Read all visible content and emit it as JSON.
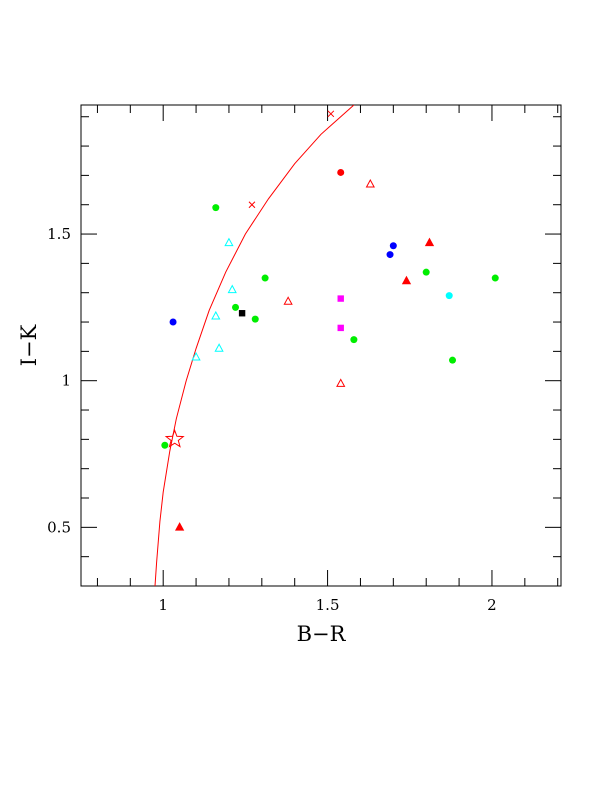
{
  "chart_data": {
    "type": "scatter",
    "xlabel": "B−R",
    "ylabel": "I−K",
    "xlim": [
      0.75,
      2.21
    ],
    "ylim": [
      0.3,
      1.94
    ],
    "x_ticks": [
      {
        "value": 1,
        "label": "1"
      },
      {
        "value": 1.5,
        "label": "1.5"
      },
      {
        "value": 2,
        "label": "2"
      }
    ],
    "y_ticks": [
      {
        "value": 0.5,
        "label": "0.5"
      },
      {
        "value": 1,
        "label": "1"
      },
      {
        "value": 1.5,
        "label": "1.5"
      }
    ],
    "x_minor_step": 0.1,
    "y_minor_step": 0.1,
    "grid": false,
    "colors": {
      "red": "#ff0000",
      "green": "#00ee00",
      "blue": "#0000ff",
      "cyan": "#00ffff",
      "magenta": "#ff00ff",
      "black": "#000000"
    },
    "curve": {
      "color": "#ff0000",
      "points": [
        [
          0.975,
          0.3
        ],
        [
          0.98,
          0.38
        ],
        [
          0.99,
          0.52
        ],
        [
          1.0,
          0.62
        ],
        [
          1.02,
          0.76
        ],
        [
          1.04,
          0.87
        ],
        [
          1.07,
          1.0
        ],
        [
          1.1,
          1.11
        ],
        [
          1.14,
          1.24
        ],
        [
          1.19,
          1.37
        ],
        [
          1.25,
          1.5
        ],
        [
          1.32,
          1.62
        ],
        [
          1.4,
          1.74
        ],
        [
          1.48,
          1.84
        ],
        [
          1.54,
          1.9
        ],
        [
          1.58,
          1.94
        ]
      ],
      "markers": [
        {
          "x": 1.035,
          "y": 0.8,
          "shape": "star"
        },
        {
          "x": 1.27,
          "y": 1.6,
          "shape": "cross"
        },
        {
          "x": 1.51,
          "y": 1.91,
          "shape": "cross"
        }
      ]
    },
    "points": [
      {
        "x": 1.16,
        "y": 1.59,
        "color": "green",
        "shape": "circle"
      },
      {
        "x": 1.31,
        "y": 1.35,
        "color": "green",
        "shape": "circle"
      },
      {
        "x": 1.22,
        "y": 1.25,
        "color": "green",
        "shape": "circle"
      },
      {
        "x": 1.28,
        "y": 1.21,
        "color": "green",
        "shape": "circle"
      },
      {
        "x": 1.58,
        "y": 1.14,
        "color": "green",
        "shape": "circle"
      },
      {
        "x": 1.8,
        "y": 1.37,
        "color": "green",
        "shape": "circle"
      },
      {
        "x": 2.01,
        "y": 1.35,
        "color": "green",
        "shape": "circle"
      },
      {
        "x": 1.88,
        "y": 1.07,
        "color": "green",
        "shape": "circle"
      },
      {
        "x": 1.005,
        "y": 0.78,
        "color": "green",
        "shape": "circle"
      },
      {
        "x": 1.03,
        "y": 1.2,
        "color": "blue",
        "shape": "circle"
      },
      {
        "x": 1.7,
        "y": 1.46,
        "color": "blue",
        "shape": "circle"
      },
      {
        "x": 1.69,
        "y": 1.43,
        "color": "blue",
        "shape": "circle"
      },
      {
        "x": 1.54,
        "y": 1.71,
        "color": "red",
        "shape": "circle"
      },
      {
        "x": 1.87,
        "y": 1.29,
        "color": "cyan",
        "shape": "circle"
      },
      {
        "x": 1.54,
        "y": 1.28,
        "color": "magenta",
        "shape": "square"
      },
      {
        "x": 1.54,
        "y": 1.18,
        "color": "magenta",
        "shape": "square"
      },
      {
        "x": 1.24,
        "y": 1.23,
        "color": "black",
        "shape": "square"
      },
      {
        "x": 1.2,
        "y": 1.47,
        "color": "cyan",
        "shape": "triangle-open"
      },
      {
        "x": 1.21,
        "y": 1.31,
        "color": "cyan",
        "shape": "triangle-open"
      },
      {
        "x": 1.16,
        "y": 1.22,
        "color": "cyan",
        "shape": "triangle-open"
      },
      {
        "x": 1.17,
        "y": 1.11,
        "color": "cyan",
        "shape": "triangle-open"
      },
      {
        "x": 1.1,
        "y": 1.08,
        "color": "cyan",
        "shape": "triangle-open"
      },
      {
        "x": 1.63,
        "y": 1.67,
        "color": "red",
        "shape": "triangle-open"
      },
      {
        "x": 1.38,
        "y": 1.27,
        "color": "red",
        "shape": "triangle-open"
      },
      {
        "x": 1.54,
        "y": 0.99,
        "color": "red",
        "shape": "triangle-open"
      },
      {
        "x": 1.81,
        "y": 1.47,
        "color": "red",
        "shape": "triangle-filled"
      },
      {
        "x": 1.74,
        "y": 1.34,
        "color": "red",
        "shape": "triangle-filled"
      },
      {
        "x": 1.05,
        "y": 0.5,
        "color": "red",
        "shape": "triangle-filled"
      }
    ]
  }
}
